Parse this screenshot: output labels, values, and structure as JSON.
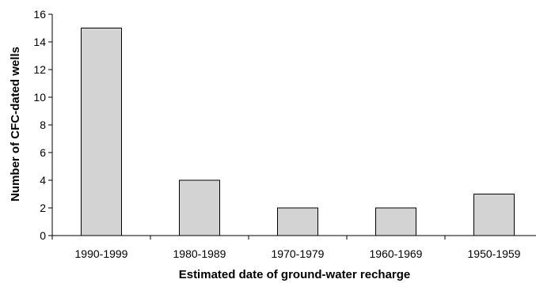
{
  "chart_data": {
    "type": "bar",
    "title": "",
    "xlabel": "Estimated date of ground-water recharge",
    "ylabel": "Number of CFC-dated wells",
    "categories": [
      "1990-1999",
      "1980-1989",
      "1970-1979",
      "1960-1969",
      "1950-1959"
    ],
    "values": [
      15,
      4,
      2,
      2,
      3
    ],
    "ylim": [
      0,
      16
    ],
    "yticks": [
      0,
      2,
      4,
      6,
      8,
      10,
      12,
      14,
      16
    ],
    "grid": false,
    "legend": "none",
    "colors": {
      "bar_fill": "#d3d3d3",
      "bar_stroke": "#000000",
      "axis": "#000000"
    }
  }
}
